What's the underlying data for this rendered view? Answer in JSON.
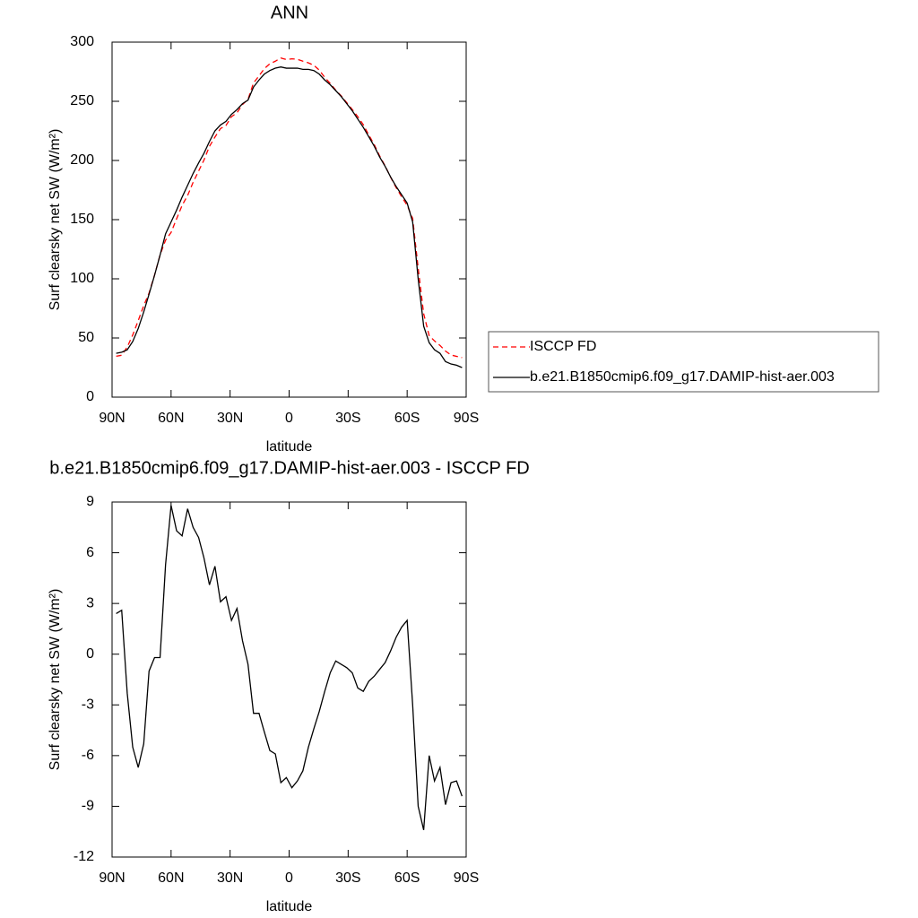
{
  "chart_data": [
    {
      "type": "line",
      "title": "ANN",
      "xlabel": "latitude",
      "ylabel": "Surf clearsky net SW (W/m²)",
      "x": [
        87.9,
        85.1,
        82.3,
        79.5,
        76.7,
        73.9,
        71.2,
        68.4,
        65.6,
        62.8,
        60.0,
        57.2,
        54.4,
        51.6,
        48.8,
        46.0,
        43.3,
        40.5,
        37.7,
        34.9,
        32.1,
        29.3,
        26.5,
        23.7,
        20.9,
        18.1,
        15.3,
        12.6,
        9.8,
        7.0,
        4.2,
        1.4,
        -1.4,
        -4.2,
        -7.0,
        -9.8,
        -12.6,
        -15.3,
        -18.1,
        -20.9,
        -23.7,
        -26.5,
        -29.3,
        -32.1,
        -34.9,
        -37.7,
        -40.5,
        -43.3,
        -46.0,
        -48.8,
        -51.6,
        -54.4,
        -57.2,
        -60.0,
        -62.8,
        -65.6,
        -68.4,
        -71.2,
        -73.9,
        -76.7,
        -79.5,
        -82.3,
        -85.1,
        -87.9
      ],
      "series": [
        {
          "name": "ISCCP FD",
          "color": "#ff0000",
          "style": "dashed",
          "values": [
            34.6,
            35.4,
            42.3,
            52.5,
            64.7,
            77.3,
            88.0,
            103.2,
            120.2,
            132.7,
            139.2,
            150.7,
            162.0,
            170.4,
            181.5,
            191.1,
            200.3,
            211.9,
            219.8,
            226.9,
            229.6,
            237.0,
            240.3,
            247.2,
            251.6,
            265.5,
            271.5,
            277.6,
            281.7,
            283.9,
            286.6,
            285.3,
            285.9,
            285.5,
            283.9,
            282.5,
            280.4,
            276.4,
            270.2,
            265.1,
            259.4,
            254.6,
            248.8,
            243.1,
            237.0,
            230.2,
            221.6,
            213.3,
            203.9,
            195.5,
            185.8,
            177.0,
            169.4,
            162.0,
            151.0,
            109.0,
            70.4,
            52.0,
            47.5,
            43.7,
            38.9,
            35.6,
            34.5,
            33.4
          ]
        },
        {
          "name": "b.e21.B1850cmip6.f09_g17.DAMIP-hist-aer.003",
          "color": "#000000",
          "style": "solid",
          "values": [
            37,
            38,
            40,
            47,
            58,
            72,
            87,
            103,
            120,
            138,
            148,
            158,
            169,
            179,
            189,
            198,
            206,
            216,
            225,
            230,
            233,
            239,
            243,
            248,
            251,
            262,
            268,
            273,
            276,
            278,
            279,
            278,
            278,
            278,
            277,
            277,
            276,
            273,
            268,
            264,
            259,
            254,
            248,
            242,
            235,
            228,
            220,
            212,
            203,
            195,
            186,
            178,
            171,
            164,
            148,
            100,
            60,
            46,
            40,
            37,
            30,
            28,
            27,
            25
          ]
        }
      ],
      "xlim": [
        90,
        -90
      ],
      "xticks": [
        {
          "value": 90,
          "label": "90N"
        },
        {
          "value": 60,
          "label": "60N"
        },
        {
          "value": 30,
          "label": "30N"
        },
        0,
        {
          "value": -30,
          "label": "30S"
        },
        {
          "value": -60,
          "label": "60S"
        },
        {
          "value": -90,
          "label": "90S"
        }
      ],
      "ylim": [
        0,
        300
      ],
      "yticks": [
        0,
        50,
        100,
        150,
        200,
        250,
        300
      ],
      "legend": "right"
    },
    {
      "type": "line",
      "title": "b.e21.B1850cmip6.f09_g17.DAMIP-hist-aer.003 - ISCCP FD",
      "xlabel": "latitude",
      "ylabel": "Surf clearsky net SW (W/m²)",
      "x": [
        87.9,
        85.1,
        82.3,
        79.5,
        76.7,
        73.9,
        71.2,
        68.4,
        65.6,
        62.8,
        60.0,
        57.2,
        54.4,
        51.6,
        48.8,
        46.0,
        43.3,
        40.5,
        37.7,
        34.9,
        32.1,
        29.3,
        26.5,
        23.7,
        20.9,
        18.1,
        15.3,
        12.6,
        9.8,
        7.0,
        4.2,
        1.4,
        -1.4,
        -4.2,
        -7.0,
        -9.8,
        -12.6,
        -15.3,
        -18.1,
        -20.9,
        -23.7,
        -26.5,
        -29.3,
        -32.1,
        -34.9,
        -37.7,
        -40.5,
        -43.3,
        -46.0,
        -48.8,
        -51.6,
        -54.4,
        -57.2,
        -60.0,
        -62.8,
        -65.6,
        -68.4,
        -71.2,
        -73.9,
        -76.7,
        -79.5,
        -82.3,
        -85.1,
        -87.9
      ],
      "series": [
        {
          "color": "#000000",
          "style": "solid",
          "values": [
            2.4,
            2.6,
            -2.3,
            -5.5,
            -6.7,
            -5.3,
            -1.0,
            -0.2,
            -0.2,
            5.3,
            8.8,
            7.3,
            7.0,
            8.6,
            7.5,
            6.9,
            5.7,
            4.1,
            5.2,
            3.1,
            3.4,
            2.0,
            2.7,
            0.8,
            -0.6,
            -3.5,
            -3.5,
            -4.6,
            -5.7,
            -5.9,
            -7.6,
            -7.3,
            -7.9,
            -7.5,
            -6.9,
            -5.5,
            -4.4,
            -3.4,
            -2.2,
            -1.1,
            -0.4,
            -0.6,
            -0.8,
            -1.1,
            -2.0,
            -2.2,
            -1.6,
            -1.3,
            -0.9,
            -0.5,
            0.2,
            1.0,
            1.6,
            2.0,
            -3.0,
            -9.0,
            -10.4,
            -6.0,
            -7.5,
            -6.7,
            -8.9,
            -7.6,
            -7.5,
            -8.4
          ]
        }
      ],
      "xlim": [
        90,
        -90
      ],
      "xticks": [
        {
          "value": 90,
          "label": "90N"
        },
        {
          "value": 60,
          "label": "60N"
        },
        {
          "value": 30,
          "label": "30N"
        },
        0,
        {
          "value": -30,
          "label": "30S"
        },
        {
          "value": -60,
          "label": "60S"
        },
        {
          "value": -90,
          "label": "90S"
        }
      ],
      "ylim": [
        -12,
        9
      ],
      "yticks": [
        -12,
        -9,
        -6,
        -3,
        0,
        3,
        6,
        9
      ]
    }
  ]
}
